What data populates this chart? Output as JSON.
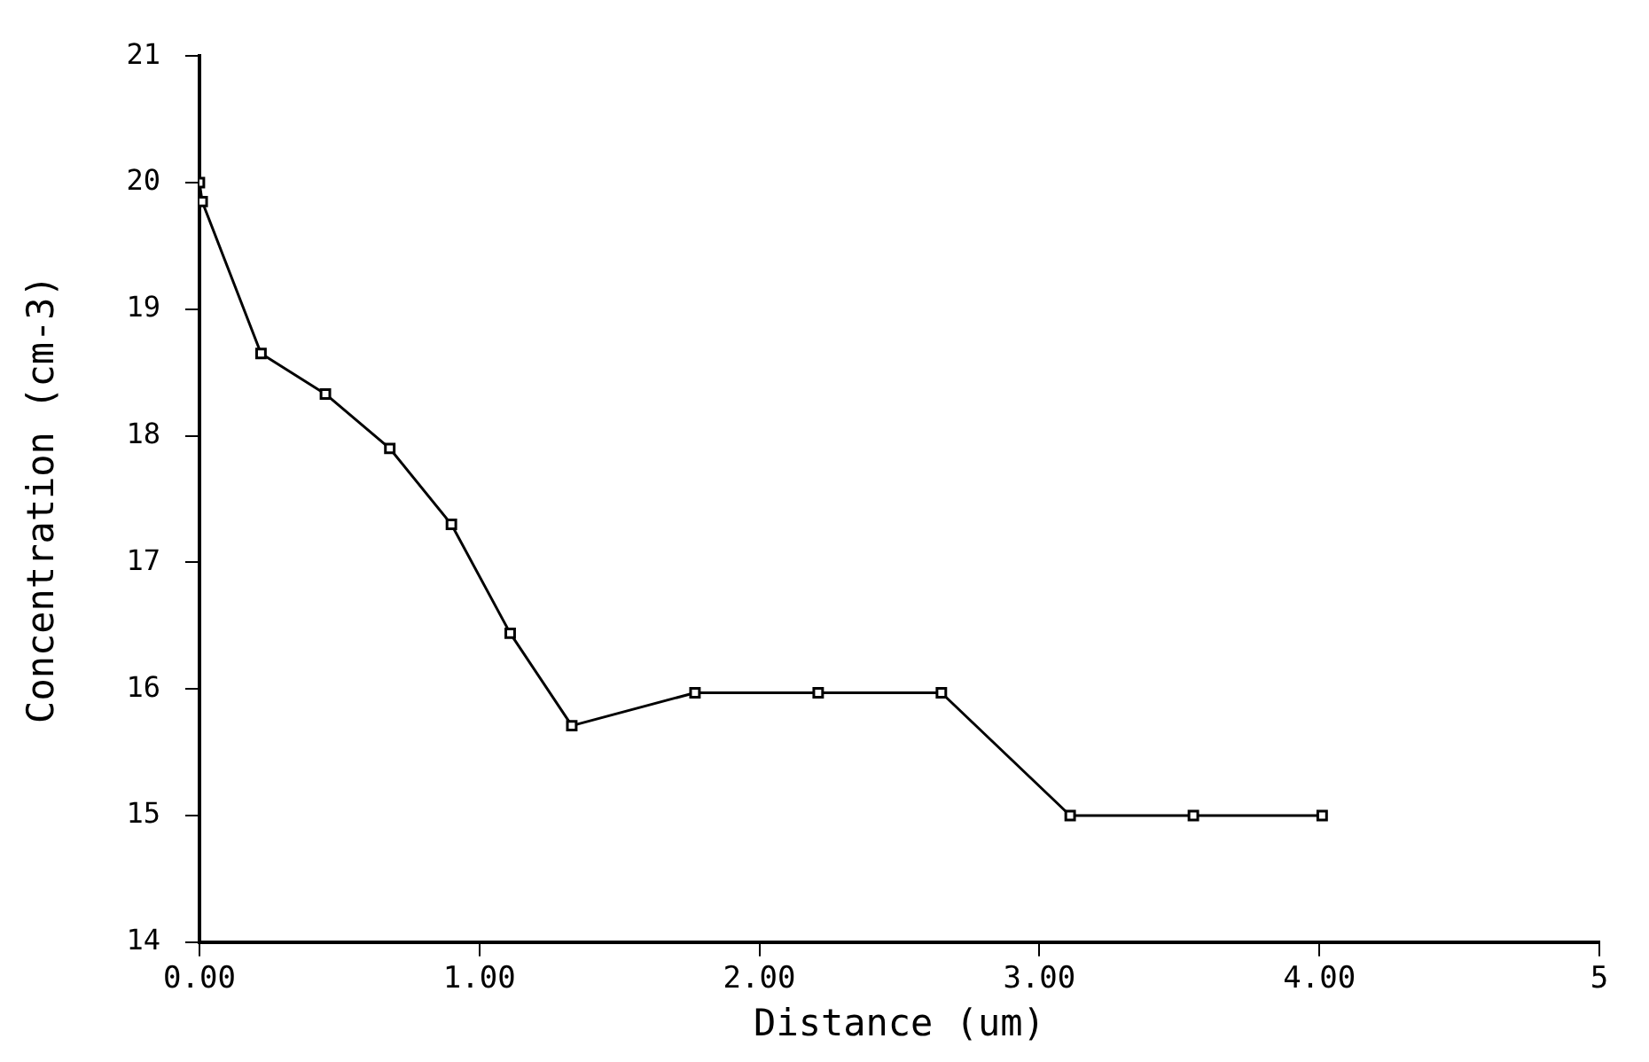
{
  "chart_data": {
    "type": "line",
    "xlabel": "Distance (um)",
    "ylabel": "Concentration (cm-3)",
    "xlim": [
      0,
      5
    ],
    "ylim": [
      14,
      21
    ],
    "xticks": [
      {
        "value": 0,
        "label": "0.00"
      },
      {
        "value": 1,
        "label": "1.00"
      },
      {
        "value": 2,
        "label": "2.00"
      },
      {
        "value": 3,
        "label": "3.00"
      },
      {
        "value": 4,
        "label": "4.00"
      },
      5
    ],
    "yticks": [
      14,
      15,
      16,
      17,
      18,
      19,
      20,
      21
    ],
    "grid": false,
    "legend": false,
    "marker": "square",
    "line_style": "solid",
    "series": [
      {
        "color": "#000000",
        "x": [
          0,
          0.01,
          0.22,
          0.45,
          0.68,
          0.9,
          1.11,
          1.33,
          1.77,
          2.21,
          2.65,
          3.11,
          3.55,
          4.01
        ],
        "values": [
          20.0,
          19.85,
          18.65,
          18.33,
          17.9,
          17.3,
          16.44,
          15.71,
          15.97,
          15.97,
          15.97,
          15.0,
          15.0,
          15.0
        ]
      }
    ]
  }
}
